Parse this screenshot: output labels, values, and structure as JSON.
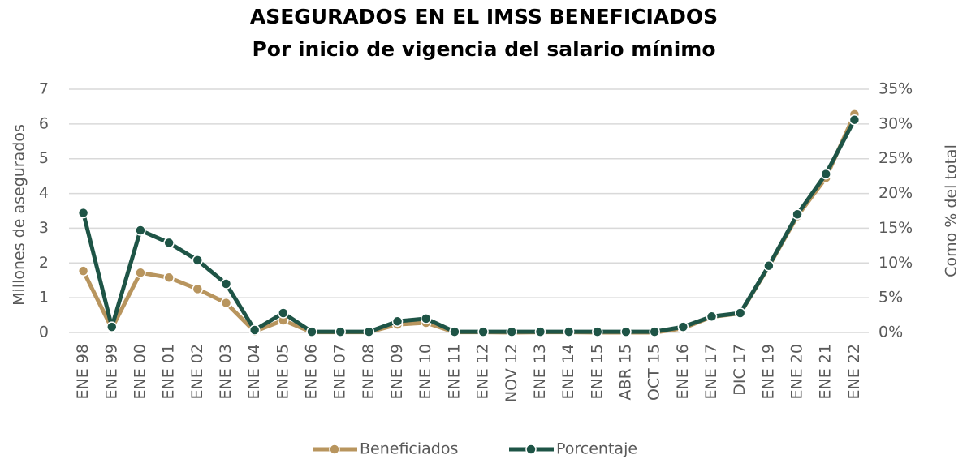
{
  "chart_data": {
    "type": "line",
    "title": "ASEGURADOS EN EL IMSS BENEFICIADOS",
    "subtitle": "Por inicio de vigencia del salario mínimo",
    "y_label": "Millones de asegurados",
    "y2_label": "Como % del total",
    "categories": [
      "ENE 98",
      "ENE 99",
      "ENE 00",
      "ENE 01",
      "ENE 02",
      "ENE 03",
      "ENE 04",
      "ENE 05",
      "ENE 06",
      "ENE 07",
      "ENE 08",
      "ENE 09",
      "ENE 10",
      "ENE 11",
      "ENE 12",
      "NOV 12",
      "ENE 13",
      "ENE 14",
      "ENE 15",
      "ABR 15",
      "OCT 15",
      "ENE 16",
      "ENE 17",
      "DIC 17",
      "ENE 19",
      "ENE 20",
      "ENE 21",
      "ENE 22"
    ],
    "series": [
      {
        "name": "Beneficiados",
        "color": "#b8955e",
        "values": [
          1.77,
          0.12,
          1.72,
          1.58,
          1.25,
          0.85,
          0.03,
          0.35,
          0.01,
          0.01,
          0.01,
          0.23,
          0.28,
          0.01,
          0.01,
          0,
          0.01,
          0.01,
          0,
          0,
          0,
          0.12,
          0.45,
          0.55,
          1.9,
          3.35,
          4.45,
          6.28
        ]
      },
      {
        "name": "Porcentaje",
        "color": "#1e5446",
        "axis": "y2",
        "values": [
          17.2,
          0.8,
          14.7,
          12.9,
          10.4,
          7.0,
          0.35,
          2.8,
          0.1,
          0.1,
          0.1,
          1.6,
          2.0,
          0.1,
          0.1,
          0.1,
          0.1,
          0.1,
          0.1,
          0.1,
          0.1,
          0.8,
          2.3,
          2.8,
          9.6,
          17.0,
          22.8,
          30.6
        ]
      }
    ],
    "ylim": [
      0,
      7
    ],
    "yticks": [
      0,
      1,
      2,
      3,
      4,
      5,
      6,
      7
    ],
    "y2lim": [
      0,
      35
    ],
    "y2ticks": [
      {
        "value": 0,
        "label": "0%"
      },
      {
        "value": 5,
        "label": "5%"
      },
      {
        "value": 10,
        "label": "10%"
      },
      {
        "value": 15,
        "label": "15%"
      },
      {
        "value": 20,
        "label": "20%"
      },
      {
        "value": 25,
        "label": "25%"
      },
      {
        "value": 30,
        "label": "30%"
      },
      {
        "value": 35,
        "label": "35%"
      }
    ],
    "grid": true,
    "legend": "bottom"
  }
}
